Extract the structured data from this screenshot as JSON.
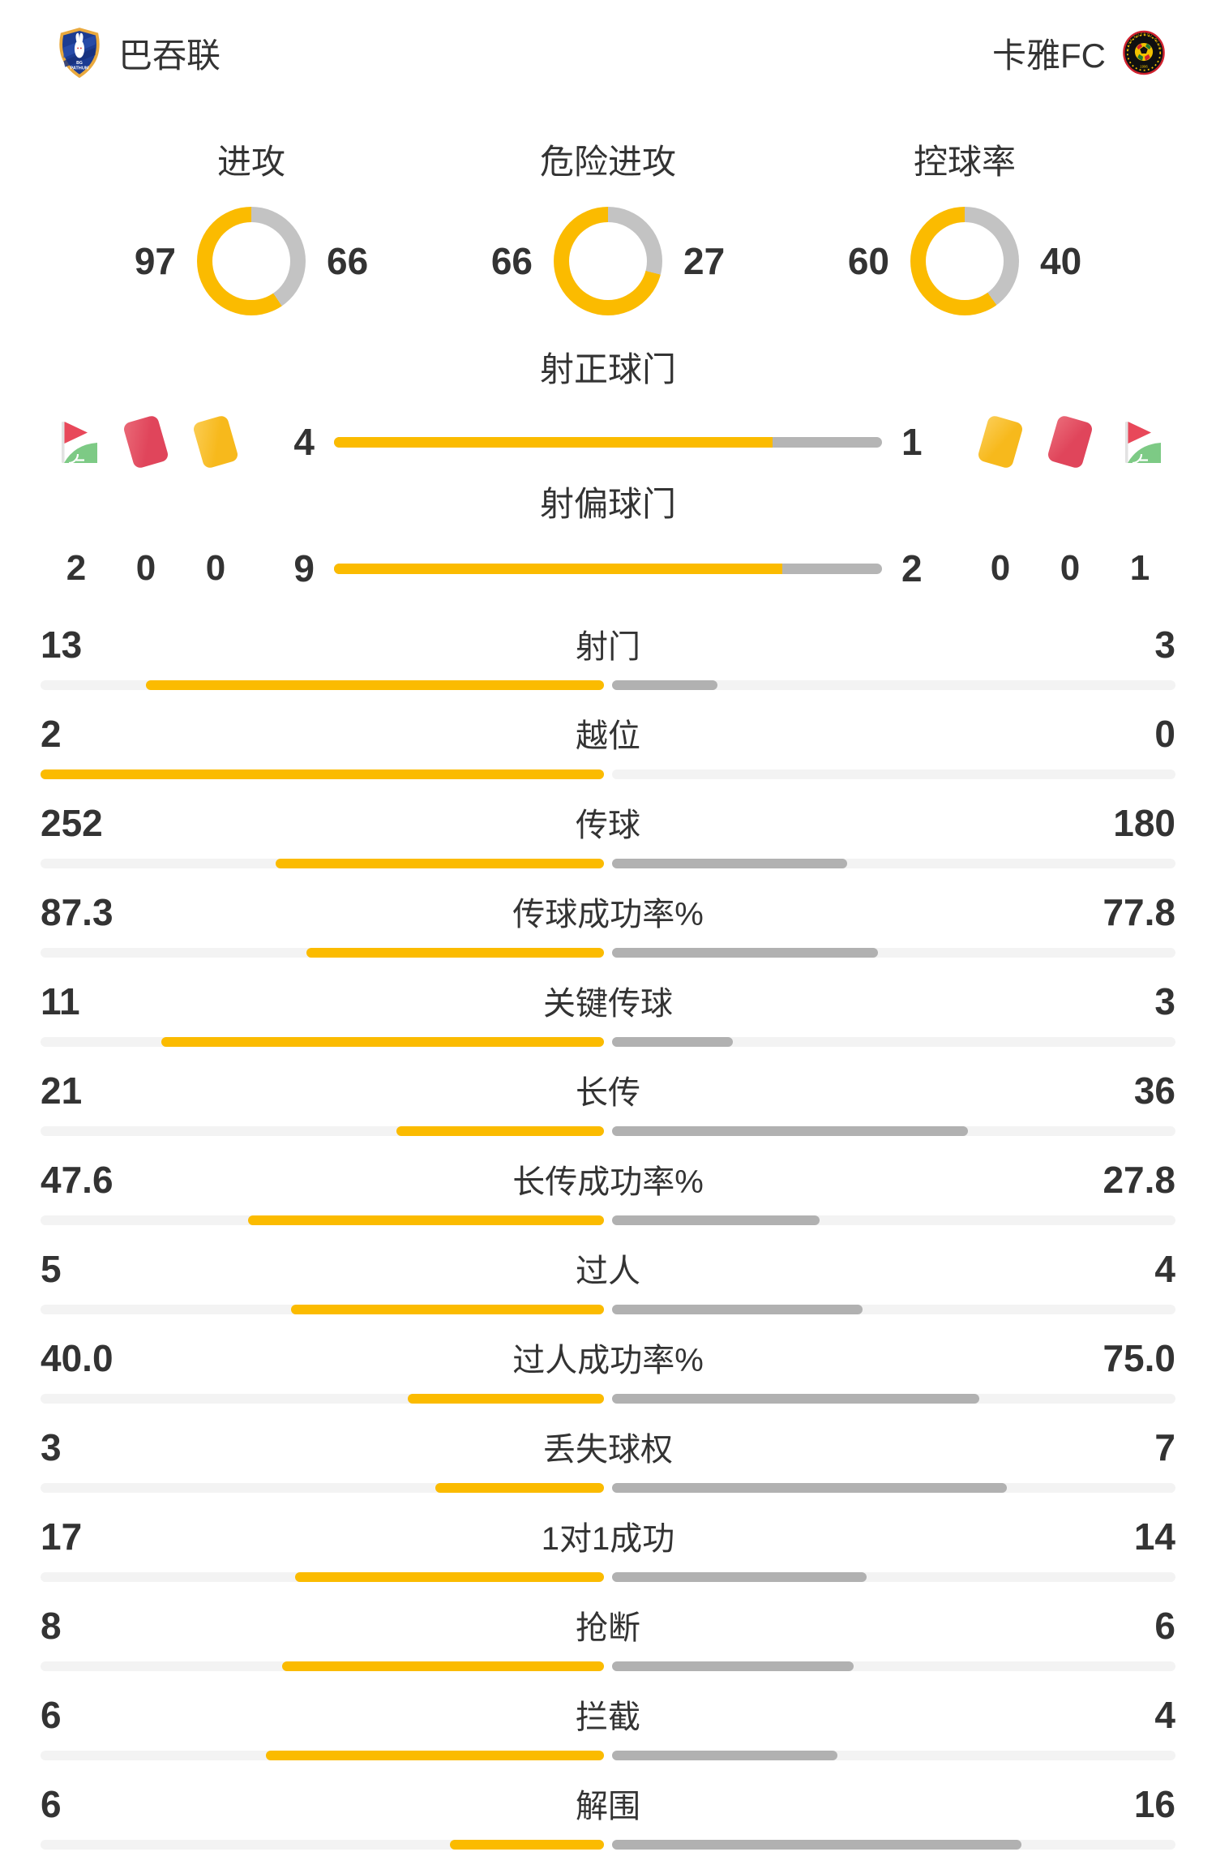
{
  "header": {
    "home_team": {
      "name": "巴吞联",
      "crest_lines": [
        "BG",
        "PATHUM"
      ]
    },
    "away_team": {
      "name": "卡雅FC",
      "crest_text": "KAYA FUTBOL CLUB",
      "crest_year": "1996"
    }
  },
  "donut_section": {
    "items": [
      {
        "title": "进攻",
        "home": 97,
        "away": 66
      },
      {
        "title": "危险进攻",
        "home": 66,
        "away": 27
      },
      {
        "title": "控球率",
        "home": 60,
        "away": 40
      }
    ]
  },
  "discipline": {
    "home": [
      {
        "icon": "corner-flag-icon",
        "count": 2
      },
      {
        "icon": "red-card-icon",
        "count": 0
      },
      {
        "icon": "yellow-card-icon",
        "count": 0
      }
    ],
    "away": [
      {
        "icon": "yellow-card-icon",
        "count": 0
      },
      {
        "icon": "red-card-icon",
        "count": 0
      },
      {
        "icon": "corner-flag-icon",
        "count": 1
      }
    ]
  },
  "shot_bars": [
    {
      "label": "射正球门",
      "home": 4,
      "away": 1
    },
    {
      "label": "射偏球门",
      "home": 9,
      "away": 2
    }
  ],
  "stats": [
    {
      "label": "射门",
      "home": "13",
      "away": "3"
    },
    {
      "label": "越位",
      "home": "2",
      "away": "0"
    },
    {
      "label": "传球",
      "home": "252",
      "away": "180"
    },
    {
      "label": "传球成功率%",
      "home": "87.3",
      "away": "77.8"
    },
    {
      "label": "关键传球",
      "home": "11",
      "away": "3"
    },
    {
      "label": "长传",
      "home": "21",
      "away": "36"
    },
    {
      "label": "长传成功率%",
      "home": "47.6",
      "away": "27.8"
    },
    {
      "label": "过人",
      "home": "5",
      "away": "4"
    },
    {
      "label": "过人成功率%",
      "home": "40.0",
      "away": "75.0"
    },
    {
      "label": "丢失球权",
      "home": "3",
      "away": "7"
    },
    {
      "label": "1对1成功",
      "home": "17",
      "away": "14"
    },
    {
      "label": "抢断",
      "home": "8",
      "away": "6"
    },
    {
      "label": "拦截",
      "home": "6",
      "away": "4"
    },
    {
      "label": "解围",
      "home": "6",
      "away": "16"
    }
  ],
  "colors": {
    "home_accent": "#FBBB00",
    "away_bar": "#B1B1B1",
    "donut_away": "#C3C3C3",
    "track": "#F3F3F3",
    "text": "#333333",
    "red_card": "#E0455B",
    "yellow_card": "#F7B91C",
    "flag_red": "#E8485A",
    "flag_green": "#7DCA85"
  }
}
